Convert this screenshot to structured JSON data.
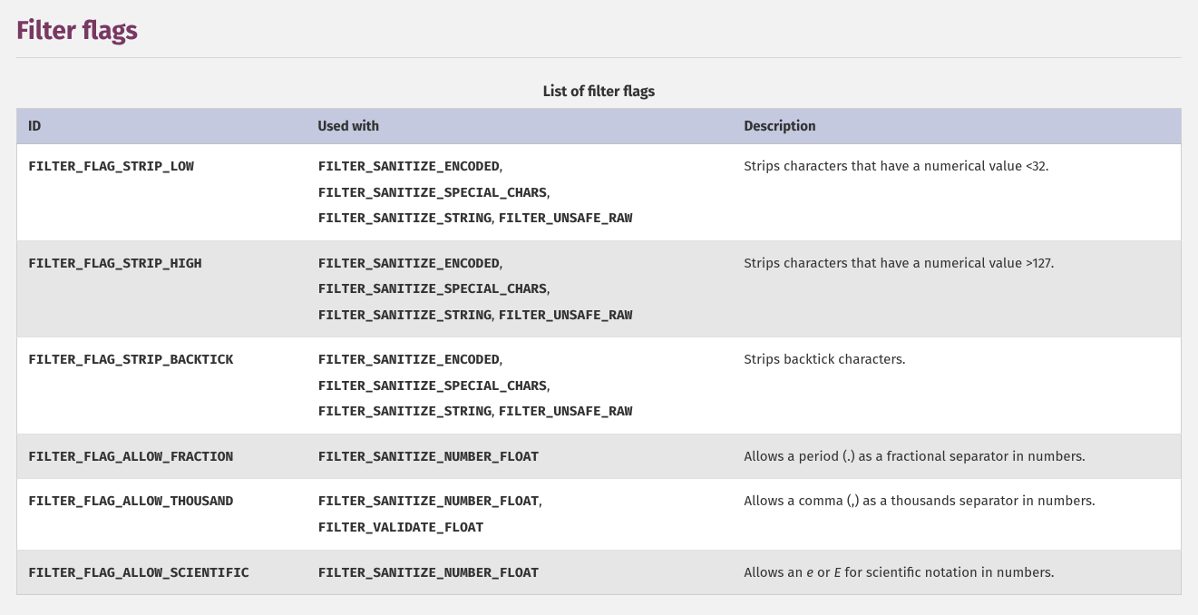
{
  "page": {
    "title": "Filter flags",
    "caption": "List of filter flags"
  },
  "columns": {
    "id": "ID",
    "used_with": "Used with",
    "description": "Description"
  },
  "colors": {
    "page_bg": "#f2f2f2",
    "title_color": "#793862",
    "header_bg": "#c4c9df",
    "row_even_bg": "#ffffff",
    "row_odd_bg": "#e6e6e6",
    "border_color": "#cfcfcf"
  },
  "rows": [
    {
      "id": "FILTER_FLAG_STRIP_LOW",
      "used_with": [
        "FILTER_SANITIZE_ENCODED",
        "FILTER_SANITIZE_SPECIAL_CHARS",
        "FILTER_SANITIZE_STRING",
        "FILTER_UNSAFE_RAW"
      ],
      "used_with_linebreaks_after": [
        0,
        1
      ],
      "description": "Strips characters that have a numerical value <32."
    },
    {
      "id": "FILTER_FLAG_STRIP_HIGH",
      "used_with": [
        "FILTER_SANITIZE_ENCODED",
        "FILTER_SANITIZE_SPECIAL_CHARS",
        "FILTER_SANITIZE_STRING",
        "FILTER_UNSAFE_RAW"
      ],
      "used_with_linebreaks_after": [
        0,
        1
      ],
      "description": "Strips characters that have a numerical value >127."
    },
    {
      "id": "FILTER_FLAG_STRIP_BACKTICK",
      "used_with": [
        "FILTER_SANITIZE_ENCODED",
        "FILTER_SANITIZE_SPECIAL_CHARS",
        "FILTER_SANITIZE_STRING",
        "FILTER_UNSAFE_RAW"
      ],
      "used_with_linebreaks_after": [
        0,
        1
      ],
      "description": "Strips backtick characters."
    },
    {
      "id": "FILTER_FLAG_ALLOW_FRACTION",
      "used_with": [
        "FILTER_SANITIZE_NUMBER_FLOAT"
      ],
      "used_with_linebreaks_after": [],
      "description": "Allows a period (.) as a fractional separator in numbers."
    },
    {
      "id": "FILTER_FLAG_ALLOW_THOUSAND",
      "used_with": [
        "FILTER_SANITIZE_NUMBER_FLOAT",
        "FILTER_VALIDATE_FLOAT"
      ],
      "used_with_linebreaks_after": [
        0
      ],
      "description": "Allows a comma (,) as a thousands separator in numbers."
    },
    {
      "id": "FILTER_FLAG_ALLOW_SCIENTIFIC",
      "used_with": [
        "FILTER_SANITIZE_NUMBER_FLOAT"
      ],
      "used_with_linebreaks_after": [],
      "description_html": "Allows an <em>e</em> or <em>E</em> for scientific notation in numbers."
    }
  ]
}
